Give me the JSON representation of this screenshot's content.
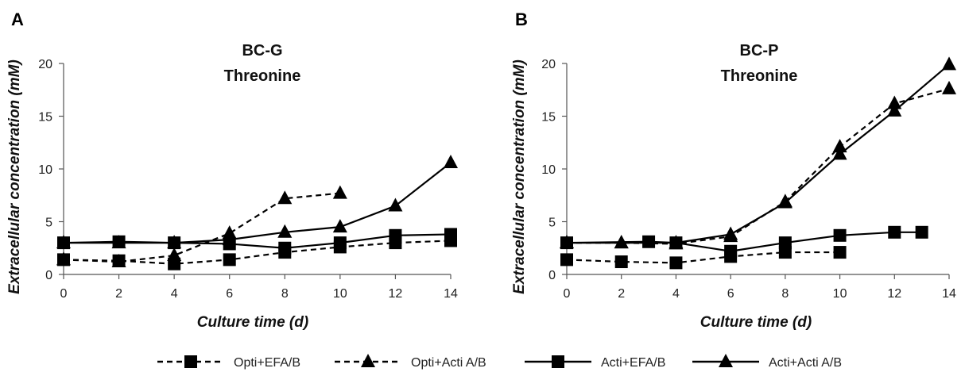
{
  "figure": {
    "legend": [
      "Opti+EFA/B",
      "Opti+Acti A/B",
      "Acti+EFA/B",
      "Acti+Acti A/B"
    ]
  },
  "chart_data": [
    {
      "type": "line",
      "panel_label": "A",
      "title": "BC-G",
      "subtitle": "Threonine",
      "xlabel": "Culture time (d)",
      "ylabel": "Extracellular concentration (mM)",
      "xlim": [
        0,
        14
      ],
      "ylim": [
        0,
        20
      ],
      "xticks": [
        0,
        2,
        4,
        6,
        8,
        10,
        12,
        14
      ],
      "yticks": [
        0,
        5,
        10,
        15,
        20
      ],
      "grid": false,
      "legend_position": "bottom",
      "series": [
        {
          "name": "Opti+EFA/B",
          "line": "dashed",
          "marker": "square",
          "x": [
            0,
            2,
            4,
            6,
            8,
            10,
            12,
            14
          ],
          "y": [
            1.4,
            1.3,
            1.0,
            1.4,
            2.1,
            2.6,
            3.0,
            3.2
          ]
        },
        {
          "name": "Opti+Acti A/B",
          "line": "dashed",
          "marker": "triangle",
          "x": [
            0,
            2,
            4,
            6,
            8,
            10
          ],
          "y": [
            1.4,
            1.2,
            1.8,
            3.9,
            7.2,
            7.7
          ]
        },
        {
          "name": "Acti+EFA/B",
          "line": "solid",
          "marker": "square",
          "x": [
            0,
            2,
            4,
            6,
            8,
            10,
            12,
            14
          ],
          "y": [
            3.0,
            3.1,
            3.0,
            2.9,
            2.5,
            3.0,
            3.7,
            3.8
          ]
        },
        {
          "name": "Acti+Acti A/B",
          "line": "solid",
          "marker": "triangle",
          "x": [
            0,
            2,
            4,
            6,
            8,
            10,
            12,
            14
          ],
          "y": [
            3.0,
            3.0,
            3.0,
            3.3,
            4.0,
            4.5,
            6.5,
            10.6
          ]
        }
      ]
    },
    {
      "type": "line",
      "panel_label": "B",
      "title": "BC-P",
      "subtitle": "Threonine",
      "xlabel": "Culture time (d)",
      "ylabel": "Extracellular concentration (mM)",
      "xlim": [
        0,
        14
      ],
      "ylim": [
        0,
        20
      ],
      "xticks": [
        0,
        2,
        4,
        6,
        8,
        10,
        12,
        14
      ],
      "yticks": [
        0,
        5,
        10,
        15,
        20
      ],
      "grid": false,
      "legend_position": "bottom",
      "series": [
        {
          "name": "Opti+EFA/B",
          "line": "dashed",
          "marker": "square",
          "x": [
            0,
            2,
            4,
            6,
            8,
            10
          ],
          "y": [
            1.4,
            1.2,
            1.1,
            1.7,
            2.1,
            2.1
          ]
        },
        {
          "name": "Opti+Acti A/B",
          "line": "dashed",
          "marker": "triangle",
          "x": [
            0,
            2,
            4,
            6,
            8,
            10,
            12,
            14
          ],
          "y": [
            3.0,
            3.0,
            2.9,
            3.6,
            6.9,
            12.1,
            16.2,
            17.6
          ]
        },
        {
          "name": "Acti+EFA/B",
          "line": "solid",
          "marker": "square",
          "x": [
            0,
            3,
            4,
            6,
            8,
            10,
            12,
            13
          ],
          "y": [
            3.0,
            3.1,
            3.0,
            2.2,
            3.0,
            3.7,
            4.0,
            4.0
          ]
        },
        {
          "name": "Acti+Acti A/B",
          "line": "solid",
          "marker": "triangle",
          "x": [
            0,
            2,
            4,
            6,
            8,
            10,
            12,
            14
          ],
          "y": [
            3.0,
            3.0,
            3.0,
            3.8,
            6.8,
            11.4,
            15.5,
            19.9
          ]
        }
      ]
    }
  ]
}
